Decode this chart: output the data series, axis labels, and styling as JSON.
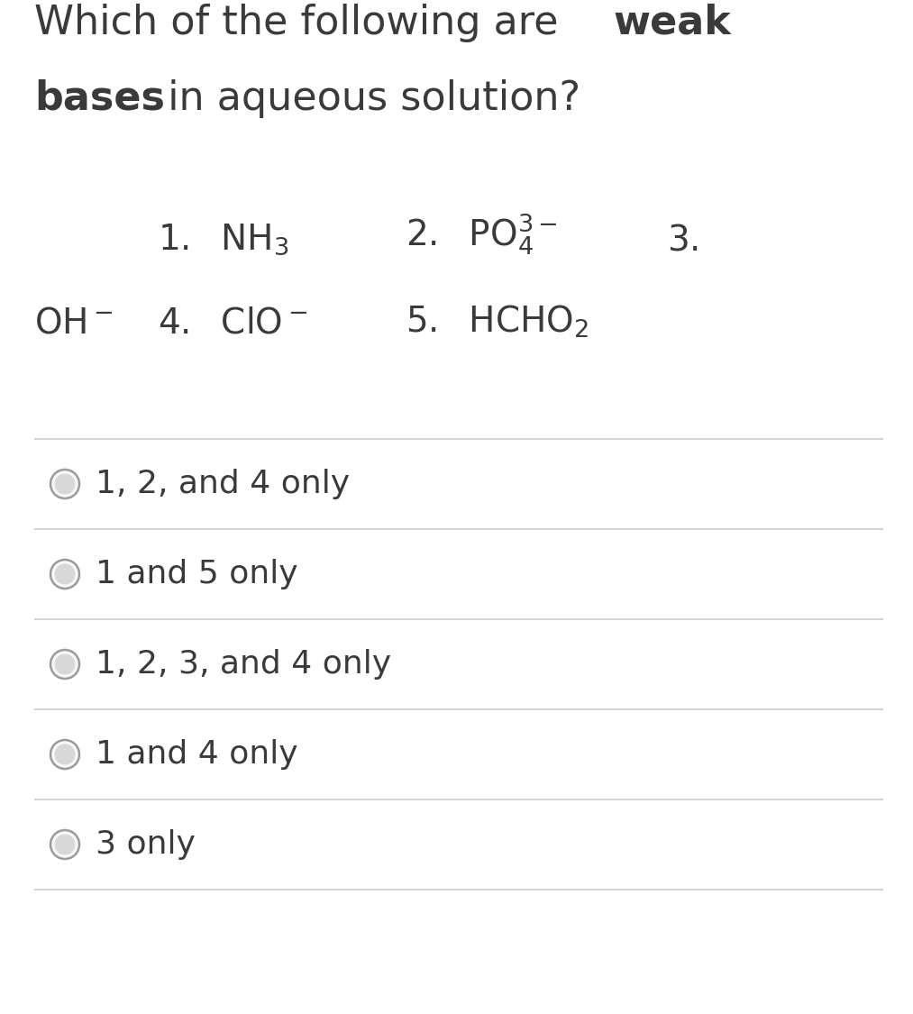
{
  "bg_color": "#ffffff",
  "text_color": "#3a3a3a",
  "line_color": "#cccccc",
  "options": [
    "1, 2, and 4 only",
    "1 and 5 only",
    "1, 2, 3, and 4 only",
    "1 and 4 only",
    "3 only"
  ],
  "title_fontsize": 32,
  "compound_fontsize": 28,
  "option_fontsize": 26
}
